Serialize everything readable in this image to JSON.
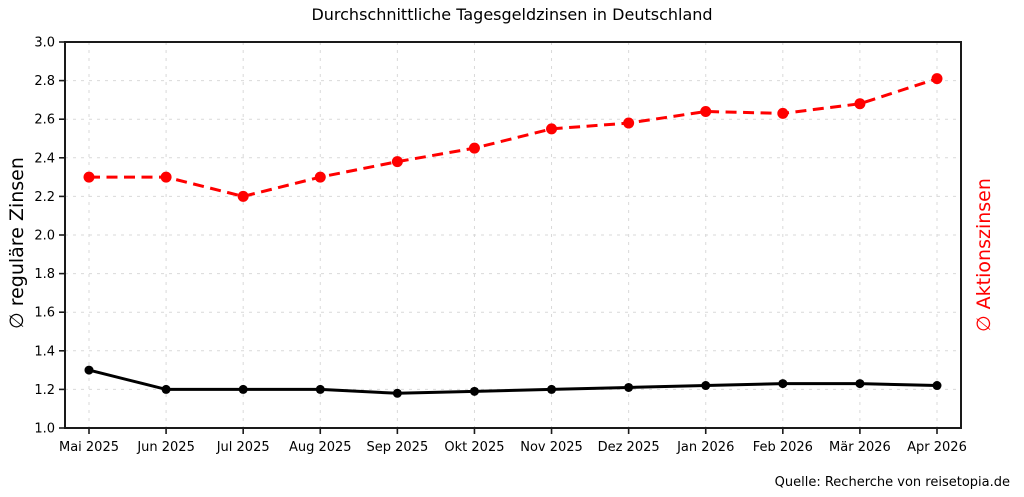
{
  "chart_data": {
    "type": "line",
    "title": "Durchschnittliche Tagesgeldzinsen in Deutschland",
    "categories": [
      "Mai 2025",
      "Jun 2025",
      "Jul 2025",
      "Aug 2025",
      "Sep 2025",
      "Okt 2025",
      "Nov 2025",
      "Dez 2025",
      "Jan 2026",
      "Feb 2026",
      "Mär 2026",
      "Apr 2026"
    ],
    "series": [
      {
        "name": "∅ reguläre Zinsen",
        "axis": "left",
        "color": "#000000",
        "line_style": "solid",
        "marker": "circle",
        "values": [
          1.3,
          1.2,
          1.2,
          1.2,
          1.18,
          1.19,
          1.2,
          1.21,
          1.22,
          1.23,
          1.23,
          1.22
        ]
      },
      {
        "name": "∅ Aktionszinsen",
        "axis": "right",
        "color": "#ff0000",
        "line_style": "dashed",
        "marker": "circle",
        "values": [
          2.3,
          2.3,
          2.2,
          2.3,
          2.38,
          2.45,
          2.55,
          2.58,
          2.64,
          2.63,
          2.68,
          2.81
        ]
      }
    ],
    "ylabel_left": "∅ reguläre Zinsen",
    "ylabel_right": "∅ Aktionszinsen",
    "xlabel": "",
    "ylim": [
      1.0,
      3.0
    ],
    "ytick_step": 0.2,
    "grid": true,
    "legend_position": "none",
    "source": "Quelle: Recherche von reisetopia.de",
    "colors": {
      "regular_series": "#000000",
      "aktion_series": "#ff0000",
      "grid": "#d9d9d9",
      "spine": "#1a1a1a",
      "background": "#ffffff"
    }
  }
}
